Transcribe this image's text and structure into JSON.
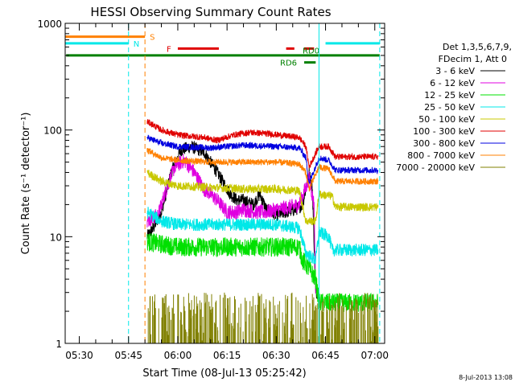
{
  "chart_data": {
    "type": "line",
    "title": "HESSI Observing Summary Count Rates",
    "xlabel": "Start Time (08-Jul-13 05:25:42)",
    "ylabel": "Count Rate (s⁻¹ detector⁻¹)",
    "yscale": "log",
    "ylim": [
      1,
      1000
    ],
    "xlim": [
      "05:25:42",
      "07:03:00"
    ],
    "x_ticks": [
      "05:30",
      "05:45",
      "06:00",
      "06:15",
      "06:30",
      "06:45",
      "07:00"
    ],
    "y_ticks": [
      "1",
      "10",
      "100",
      "1000"
    ],
    "timestamp": "8-Jul-2013 13:08",
    "legend": {
      "placement": "right",
      "header": [
        "Det 1,3,5,6,7,9,",
        "FDecim 1, Att 0"
      ],
      "entries": [
        {
          "label": "3 - 6 keV",
          "color": "#000000"
        },
        {
          "label": "6 - 12 keV",
          "color": "#e000e0"
        },
        {
          "label": "12 - 25 keV",
          "color": "#00e000"
        },
        {
          "label": "25 - 50 keV",
          "color": "#00e8e8"
        },
        {
          "label": "50 - 100 keV",
          "color": "#c8c800"
        },
        {
          "label": "100 - 300 keV",
          "color": "#e00000"
        },
        {
          "label": "300 - 800 keV",
          "color": "#0000e0"
        },
        {
          "label": "800 - 7000 keV",
          "color": "#ff8000"
        },
        {
          "label": "7000 - 20000 keV",
          "color": "#808000"
        }
      ]
    },
    "flag_bars": [
      {
        "label": "S",
        "color": "#ff8000",
        "y": 750,
        "segments": [
          [
            "05:25:42",
            "05:50:00"
          ]
        ]
      },
      {
        "label": "N",
        "color": "#00e8e8",
        "y": 650,
        "segments": [
          [
            "05:25:42",
            "05:45:00"
          ],
          [
            "06:45:00",
            "07:01:30"
          ]
        ]
      },
      {
        "label": "F",
        "color": "#e00000",
        "y": 580,
        "segments": [
          [
            "06:00:00",
            "06:12:30"
          ],
          [
            "06:33:00",
            "06:35:30"
          ],
          [
            "06:38:30",
            "06:41:30"
          ]
        ]
      },
      {
        "label": "",
        "color": "#008000",
        "y": 500,
        "segments": [
          [
            "05:26:00",
            "07:01:30"
          ]
        ]
      },
      {
        "label": "RD6",
        "color": "#008000",
        "y": 430,
        "segments": [
          [
            "06:38:30",
            "06:42:00"
          ]
        ]
      },
      {
        "label": "RD0",
        "color": "",
        "y": 0,
        "segments": []
      }
    ],
    "vlines": [
      {
        "time": "05:45:00",
        "color": "#00e8e8",
        "style": "dashed"
      },
      {
        "time": "05:50:00",
        "color": "#ff8000",
        "style": "dashed"
      },
      {
        "time": "06:43:00",
        "color": "#00e8e8",
        "style": "solid"
      },
      {
        "time": "07:01:30",
        "color": "#00e8e8",
        "style": "dashed"
      }
    ],
    "series": [
      {
        "name": "3 - 6 keV",
        "color": "#000000",
        "noise": 0.06,
        "points": [
          [
            "05:50:40",
            10
          ],
          [
            "05:52:30",
            12
          ],
          [
            "05:55:00",
            17
          ],
          [
            "05:58:00",
            40
          ],
          [
            "06:01:00",
            65
          ],
          [
            "06:04:00",
            70
          ],
          [
            "06:08:00",
            62
          ],
          [
            "06:12:00",
            40
          ],
          [
            "06:16:00",
            25
          ],
          [
            "06:18:00",
            22
          ],
          [
            "06:20:00",
            22
          ],
          [
            "06:23:00",
            20
          ],
          [
            "06:25:00",
            25
          ],
          [
            "06:27:00",
            18
          ],
          [
            "06:30:00",
            16
          ],
          [
            "06:33:00",
            17
          ],
          [
            "06:36:00",
            18
          ],
          [
            "06:38:00",
            20
          ],
          [
            "06:40:00",
            40
          ],
          [
            "06:41:00",
            28
          ],
          [
            "06:42:00",
            3
          ],
          [
            "06:43:00",
            3
          ]
        ]
      },
      {
        "name": "6 - 12 keV",
        "color": "#e000e0",
        "noise": 0.07,
        "points": [
          [
            "05:50:40",
            14
          ],
          [
            "05:54:00",
            16
          ],
          [
            "05:56:00",
            25
          ],
          [
            "05:59:00",
            45
          ],
          [
            "06:02:00",
            52
          ],
          [
            "06:05:00",
            40
          ],
          [
            "06:08:00",
            28
          ],
          [
            "06:10:00",
            25
          ],
          [
            "06:12:00",
            22
          ],
          [
            "06:15:00",
            17
          ],
          [
            "06:18:00",
            17
          ],
          [
            "06:20:00",
            18
          ],
          [
            "06:24:00",
            17
          ],
          [
            "06:27:00",
            17
          ],
          [
            "06:30:00",
            18
          ],
          [
            "06:34:00",
            19
          ],
          [
            "06:37:00",
            20
          ],
          [
            "06:40:00",
            35
          ],
          [
            "06:41:30",
            20
          ],
          [
            "06:42:00",
            3
          ]
        ]
      },
      {
        "name": "12 - 25 keV",
        "color": "#00e000",
        "noise": 0.09,
        "points": [
          [
            "05:50:40",
            9
          ],
          [
            "05:55:00",
            8.5
          ],
          [
            "06:00:00",
            8
          ],
          [
            "06:10:00",
            8
          ],
          [
            "06:20:00",
            8
          ],
          [
            "06:30:00",
            8
          ],
          [
            "06:37:00",
            8
          ],
          [
            "06:38:00",
            6
          ],
          [
            "06:40:00",
            5
          ],
          [
            "06:42:00",
            4
          ],
          [
            "06:43:00",
            2.4
          ],
          [
            "06:48:00",
            2.4
          ],
          [
            "06:50:00",
            2.4
          ],
          [
            "06:55:00",
            2.4
          ],
          [
            "07:00:00",
            2.4
          ],
          [
            "07:01:00",
            2.4
          ]
        ]
      },
      {
        "name": "25 - 50 keV",
        "color": "#00e8e8",
        "noise": 0.06,
        "points": [
          [
            "05:50:40",
            17
          ],
          [
            "05:55:00",
            14
          ],
          [
            "06:00:00",
            13
          ],
          [
            "06:10:00",
            13
          ],
          [
            "06:20:00",
            13
          ],
          [
            "06:30:00",
            13
          ],
          [
            "06:37:00",
            12
          ],
          [
            "06:39:00",
            7
          ],
          [
            "06:42:00",
            6
          ],
          [
            "06:43:00",
            11
          ],
          [
            "06:46:00",
            10
          ],
          [
            "06:47:00",
            7.5
          ],
          [
            "06:55:00",
            7.5
          ],
          [
            "07:01:00",
            7.5
          ]
        ]
      },
      {
        "name": "50 - 100 keV",
        "color": "#c8c800",
        "noise": 0.04,
        "points": [
          [
            "05:50:40",
            40
          ],
          [
            "05:55:00",
            33
          ],
          [
            "06:00:00",
            30
          ],
          [
            "06:10:00",
            29
          ],
          [
            "06:20:00",
            28
          ],
          [
            "06:30:00",
            28
          ],
          [
            "06:37:00",
            27
          ],
          [
            "06:39:00",
            14
          ],
          [
            "06:42:00",
            14
          ],
          [
            "06:43:00",
            25
          ],
          [
            "06:47:00",
            24
          ],
          [
            "06:48:00",
            19
          ],
          [
            "06:55:00",
            19
          ],
          [
            "07:01:00",
            19
          ]
        ]
      },
      {
        "name": "100 - 300 keV",
        "color": "#e00000",
        "noise": 0.03,
        "points": [
          [
            "05:50:40",
            120
          ],
          [
            "05:55:00",
            100
          ],
          [
            "06:00:00",
            90
          ],
          [
            "06:08:00",
            85
          ],
          [
            "06:12:00",
            80
          ],
          [
            "06:17:00",
            90
          ],
          [
            "06:22:00",
            95
          ],
          [
            "06:28:00",
            92
          ],
          [
            "06:33:00",
            88
          ],
          [
            "06:37:00",
            85
          ],
          [
            "06:39:00",
            70
          ],
          [
            "06:40:00",
            45
          ],
          [
            "06:43:00",
            70
          ],
          [
            "06:46:00",
            70
          ],
          [
            "06:48:00",
            56
          ],
          [
            "06:55:00",
            56
          ],
          [
            "07:01:00",
            56
          ]
        ]
      },
      {
        "name": "300 - 800 keV",
        "color": "#0000e0",
        "noise": 0.03,
        "points": [
          [
            "05:50:40",
            85
          ],
          [
            "05:55:00",
            75
          ],
          [
            "06:00:00",
            70
          ],
          [
            "06:10:00",
            68
          ],
          [
            "06:20:00",
            72
          ],
          [
            "06:30:00",
            70
          ],
          [
            "06:37:00",
            68
          ],
          [
            "06:39:00",
            55
          ],
          [
            "06:40:00",
            32
          ],
          [
            "06:43:00",
            55
          ],
          [
            "06:46:00",
            52
          ],
          [
            "06:48:00",
            42
          ],
          [
            "06:55:00",
            42
          ],
          [
            "07:01:00",
            42
          ]
        ]
      },
      {
        "name": "800 - 7000 keV",
        "color": "#ff8000",
        "noise": 0.03,
        "points": [
          [
            "05:50:40",
            65
          ],
          [
            "05:55:00",
            55
          ],
          [
            "06:00:00",
            52
          ],
          [
            "06:10:00",
            50
          ],
          [
            "06:20:00",
            50
          ],
          [
            "06:30:00",
            50
          ],
          [
            "06:37:00",
            48
          ],
          [
            "06:39:00",
            40
          ],
          [
            "06:40:00",
            28
          ],
          [
            "06:43:00",
            45
          ],
          [
            "06:46:00",
            43
          ],
          [
            "06:48:00",
            33
          ],
          [
            "06:55:00",
            33
          ],
          [
            "07:01:00",
            33
          ]
        ]
      },
      {
        "name": "7000 - 20000 keV",
        "color": "#808000",
        "noise": 0,
        "points": [
          [
            "05:51:00",
            2.5
          ],
          [
            "07:01:00",
            2.5
          ]
        ],
        "range": [
          1,
          3.0
        ]
      }
    ]
  }
}
